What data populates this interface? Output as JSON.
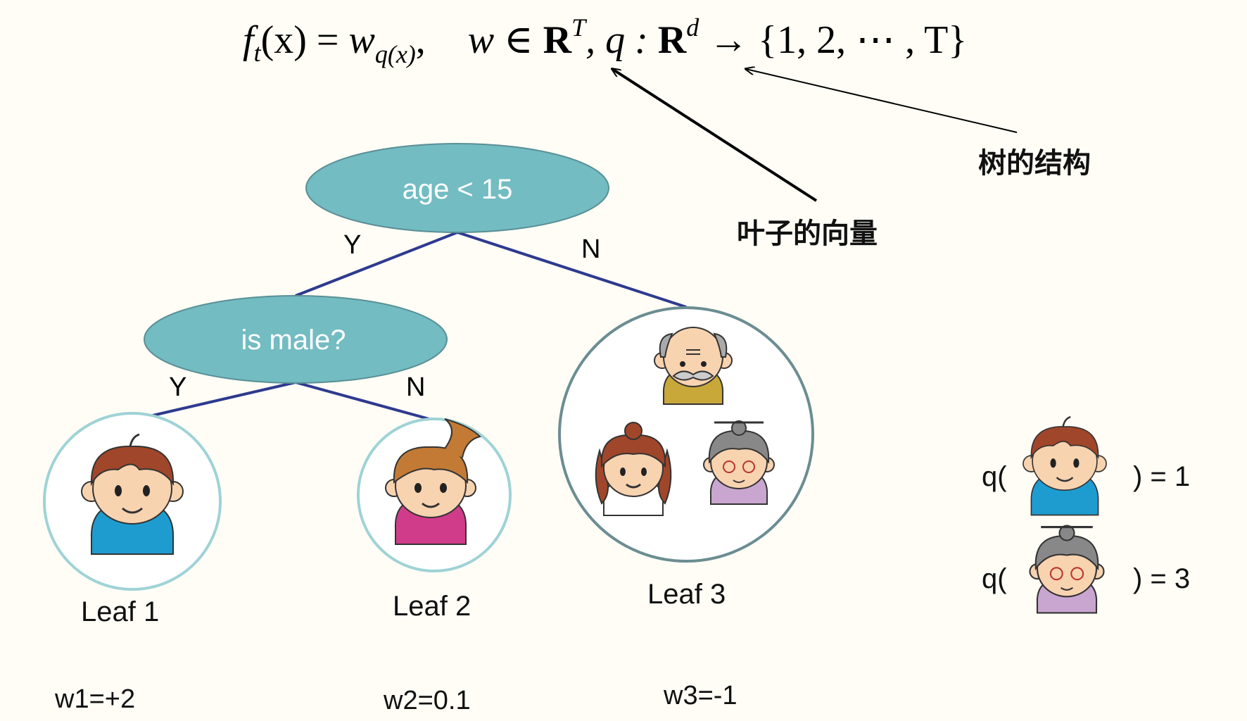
{
  "formula": {
    "f": "f",
    "t_sub": "t",
    "lhs_arg": "(x) = ",
    "w": "w",
    "q_sub": "q(x)",
    "comma": ",",
    "domain_w": "w ∈ ",
    "R": "R",
    "T_sup": "T",
    "q_map": ", q : ",
    "d_sup": "d",
    "codomain": " → {1, 2, ⋯ , T}"
  },
  "annotations": {
    "leaf_vector": "叶子的向量",
    "tree_structure": "树的结构"
  },
  "tree": {
    "root": "age < 15",
    "child": "is male?",
    "edge_yes": "Y",
    "edge_no": "N"
  },
  "leaves": [
    {
      "label": "Leaf 1",
      "weight": "w1=+2"
    },
    {
      "label": "Leaf 2",
      "weight": "w2=0.1"
    },
    {
      "label": "Leaf 3",
      "weight": "w3=-1"
    }
  ],
  "examples": [
    {
      "prefix": "q(",
      "suffix": ") = 1"
    },
    {
      "prefix": "q(",
      "suffix": ") = 3"
    }
  ],
  "colors": {
    "node_fill": "#72bcc2",
    "edge": "#2e3a8f",
    "circle_leaf": "#9fd3d6",
    "circle_leaf3": "#6b8d92"
  }
}
